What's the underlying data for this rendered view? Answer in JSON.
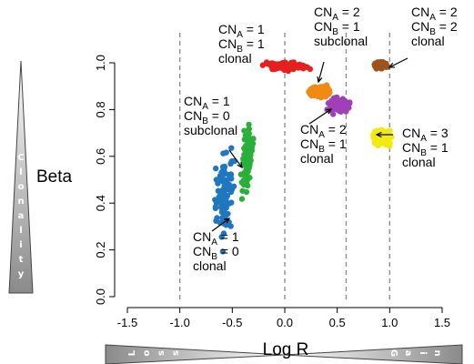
{
  "chart_data": {
    "type": "scatter",
    "xlabel": "Log R",
    "ylabel": "Beta",
    "xlim": [
      -1.5,
      1.5
    ],
    "ylim": [
      0.0,
      1.0
    ],
    "x_ticks": [
      "-1.5",
      "-1.0",
      "-0.5",
      "0.0",
      "0.5",
      "1.0",
      "1.5"
    ],
    "y_ticks": [
      "0.0",
      "0.2",
      "0.4",
      "0.6",
      "0.8",
      "1.0"
    ],
    "reference_lines_x": [
      -1.0,
      0.0,
      0.585,
      1.0
    ],
    "vertical_wedge_letters": [
      "C",
      "l",
      "o",
      "n",
      "a",
      "l",
      "i",
      "t",
      "y"
    ],
    "horizontal_wedge_letters_left": [
      "L",
      "o",
      "s",
      "s"
    ],
    "horizontal_wedge_letters_right": [
      "G",
      "a",
      "i",
      "n"
    ],
    "clusters": [
      {
        "color": "#1f77c0",
        "x": -0.58,
        "y": 0.43,
        "x_spread": 0.04,
        "y_spread": 0.09,
        "tilt": 0.2,
        "annotation": {
          "line1": "CN",
          "sub1": "A",
          "val1": " = 1",
          "line2": "CN",
          "sub2": "B",
          "val2": " = 0",
          "line3": "clonal"
        }
      },
      {
        "color": "#2ab03a",
        "x": -0.36,
        "y": 0.6,
        "x_spread": 0.02,
        "y_spread": 0.07,
        "tilt": 0.15,
        "annotation": {
          "line1": "CN",
          "sub1": "A",
          "val1": " = 1",
          "line2": "CN",
          "sub2": "B",
          "val2": " = 0",
          "line3": "subclonal"
        }
      },
      {
        "color": "#e52020",
        "x": 0.01,
        "y": 0.985,
        "x_spread": 0.09,
        "y_spread": 0.008,
        "tilt": 0,
        "annotation": {
          "line1": "CN",
          "sub1": "A",
          "val1": " = 1",
          "line2": "CN",
          "sub2": "B",
          "val2": " = 1",
          "line3": "clonal"
        }
      },
      {
        "color": "#f08a10",
        "x": 0.32,
        "y": 0.875,
        "x_spread": 0.05,
        "y_spread": 0.012,
        "tilt": 0,
        "annotation": {
          "line1": "CN",
          "sub1": "A",
          "val1": " = 2",
          "line2": "CN",
          "sub2": "B",
          "val2": " = 1",
          "line3": "subclonal"
        }
      },
      {
        "color": "#a040b8",
        "x": 0.52,
        "y": 0.815,
        "x_spread": 0.05,
        "y_spread": 0.015,
        "tilt": 0,
        "annotation": {
          "line1": "CN",
          "sub1": "A",
          "val1": " = 2",
          "line2": "CN",
          "sub2": "B",
          "val2": " = 1",
          "line3": "clonal"
        }
      },
      {
        "color": "#a0521c",
        "x": 0.92,
        "y": 0.99,
        "x_spread": 0.035,
        "y_spread": 0.006,
        "tilt": 0,
        "annotation": {
          "line1": "CN",
          "sub1": "A",
          "val1": " = 2",
          "line2": "CN",
          "sub2": "B",
          "val2": " = 2",
          "line3": "clonal"
        }
      },
      {
        "color": "#f2ea10",
        "x": 0.92,
        "y": 0.68,
        "x_spread": 0.05,
        "y_spread": 0.018,
        "tilt": 0,
        "annotation": {
          "line1": "CN",
          "sub1": "A",
          "val1": " = 3",
          "line2": "CN",
          "sub2": "B",
          "val2": " = 1",
          "line3": "clonal"
        }
      }
    ]
  }
}
